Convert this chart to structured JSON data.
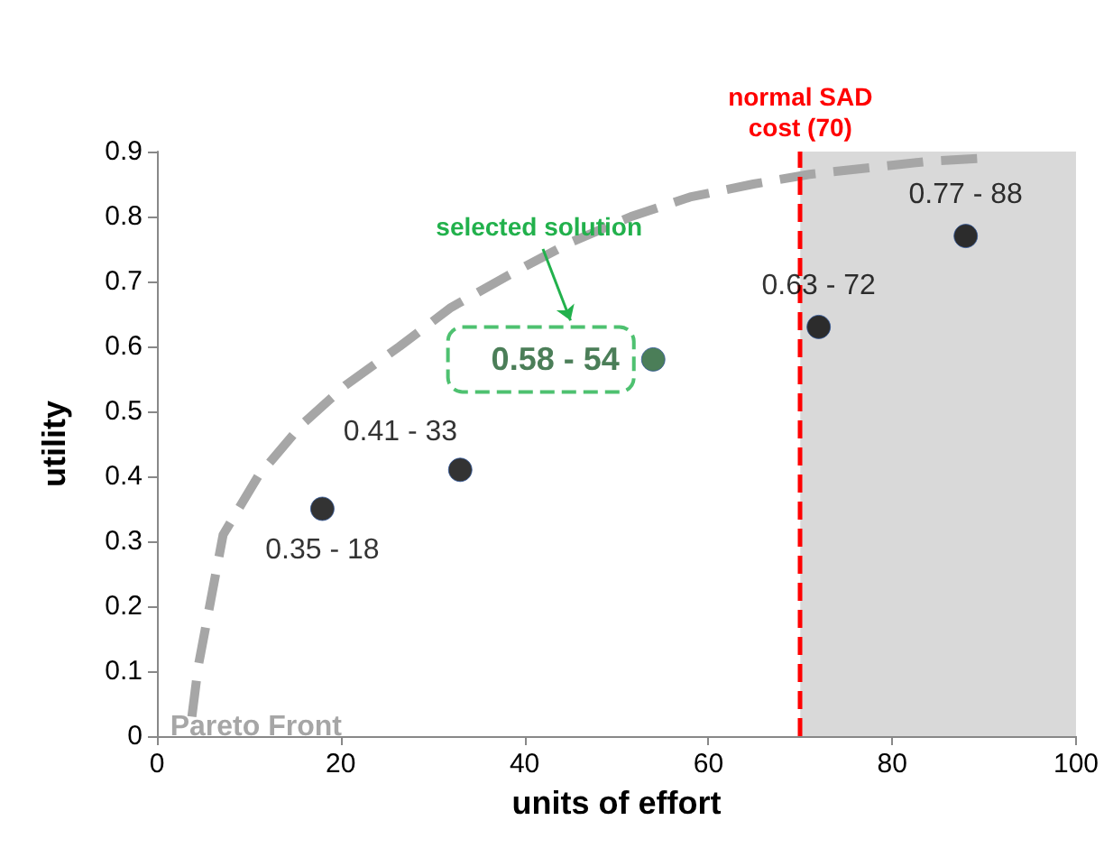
{
  "chart_data": {
    "type": "scatter",
    "xlabel": "units of effort",
    "ylabel": "utility",
    "xlim": [
      0,
      100
    ],
    "xticks": [
      0,
      20,
      40,
      60,
      80,
      100
    ],
    "ylim": [
      0,
      0.9
    ],
    "yticks": [
      0,
      0.1,
      0.2,
      0.3,
      0.4,
      0.5,
      0.6,
      0.7,
      0.8,
      0.9
    ],
    "grid": false,
    "legend": false,
    "marker": "circle",
    "series": [
      {
        "name": "Pareto Front",
        "type": "line",
        "color": "#a6a6a6",
        "line_style": "dashed",
        "marker": "none",
        "x": [
          3.8,
          4.5,
          7.2,
          11,
          15.8,
          20.5,
          26.4,
          32,
          38.3,
          45,
          51.6,
          58,
          64.9,
          71,
          78.1,
          84,
          90
        ],
        "values": [
          0.03,
          0.108,
          0.31,
          0.4,
          0.48,
          0.54,
          0.6,
          0.66,
          0.71,
          0.76,
          0.8,
          0.83,
          0.85,
          0.865,
          0.876,
          0.885,
          0.89
        ]
      },
      {
        "x": [
          18,
          33,
          54,
          72,
          88
        ],
        "values": [
          0.35,
          0.41,
          0.58,
          0.63,
          0.77
        ],
        "colors": [
          "#000000",
          "#000000",
          "#1e5e2e",
          "#000000",
          "#000000"
        ],
        "value_labels": [
          "0.35 - 18",
          "0.41 - 33",
          "0.58 - 54",
          "0.63 - 72",
          "0.77 - 88"
        ]
      }
    ],
    "ref_lines": [
      {
        "axis": "x",
        "value": 70,
        "label": "normal SAD\ncost (70)",
        "color": "#ff0000",
        "line_style": "dashed"
      }
    ],
    "bands": [
      {
        "axis": "x",
        "from": 70,
        "to": 100,
        "color": "#d9d9d9"
      }
    ],
    "annotations": [
      "selected solution"
    ]
  }
}
